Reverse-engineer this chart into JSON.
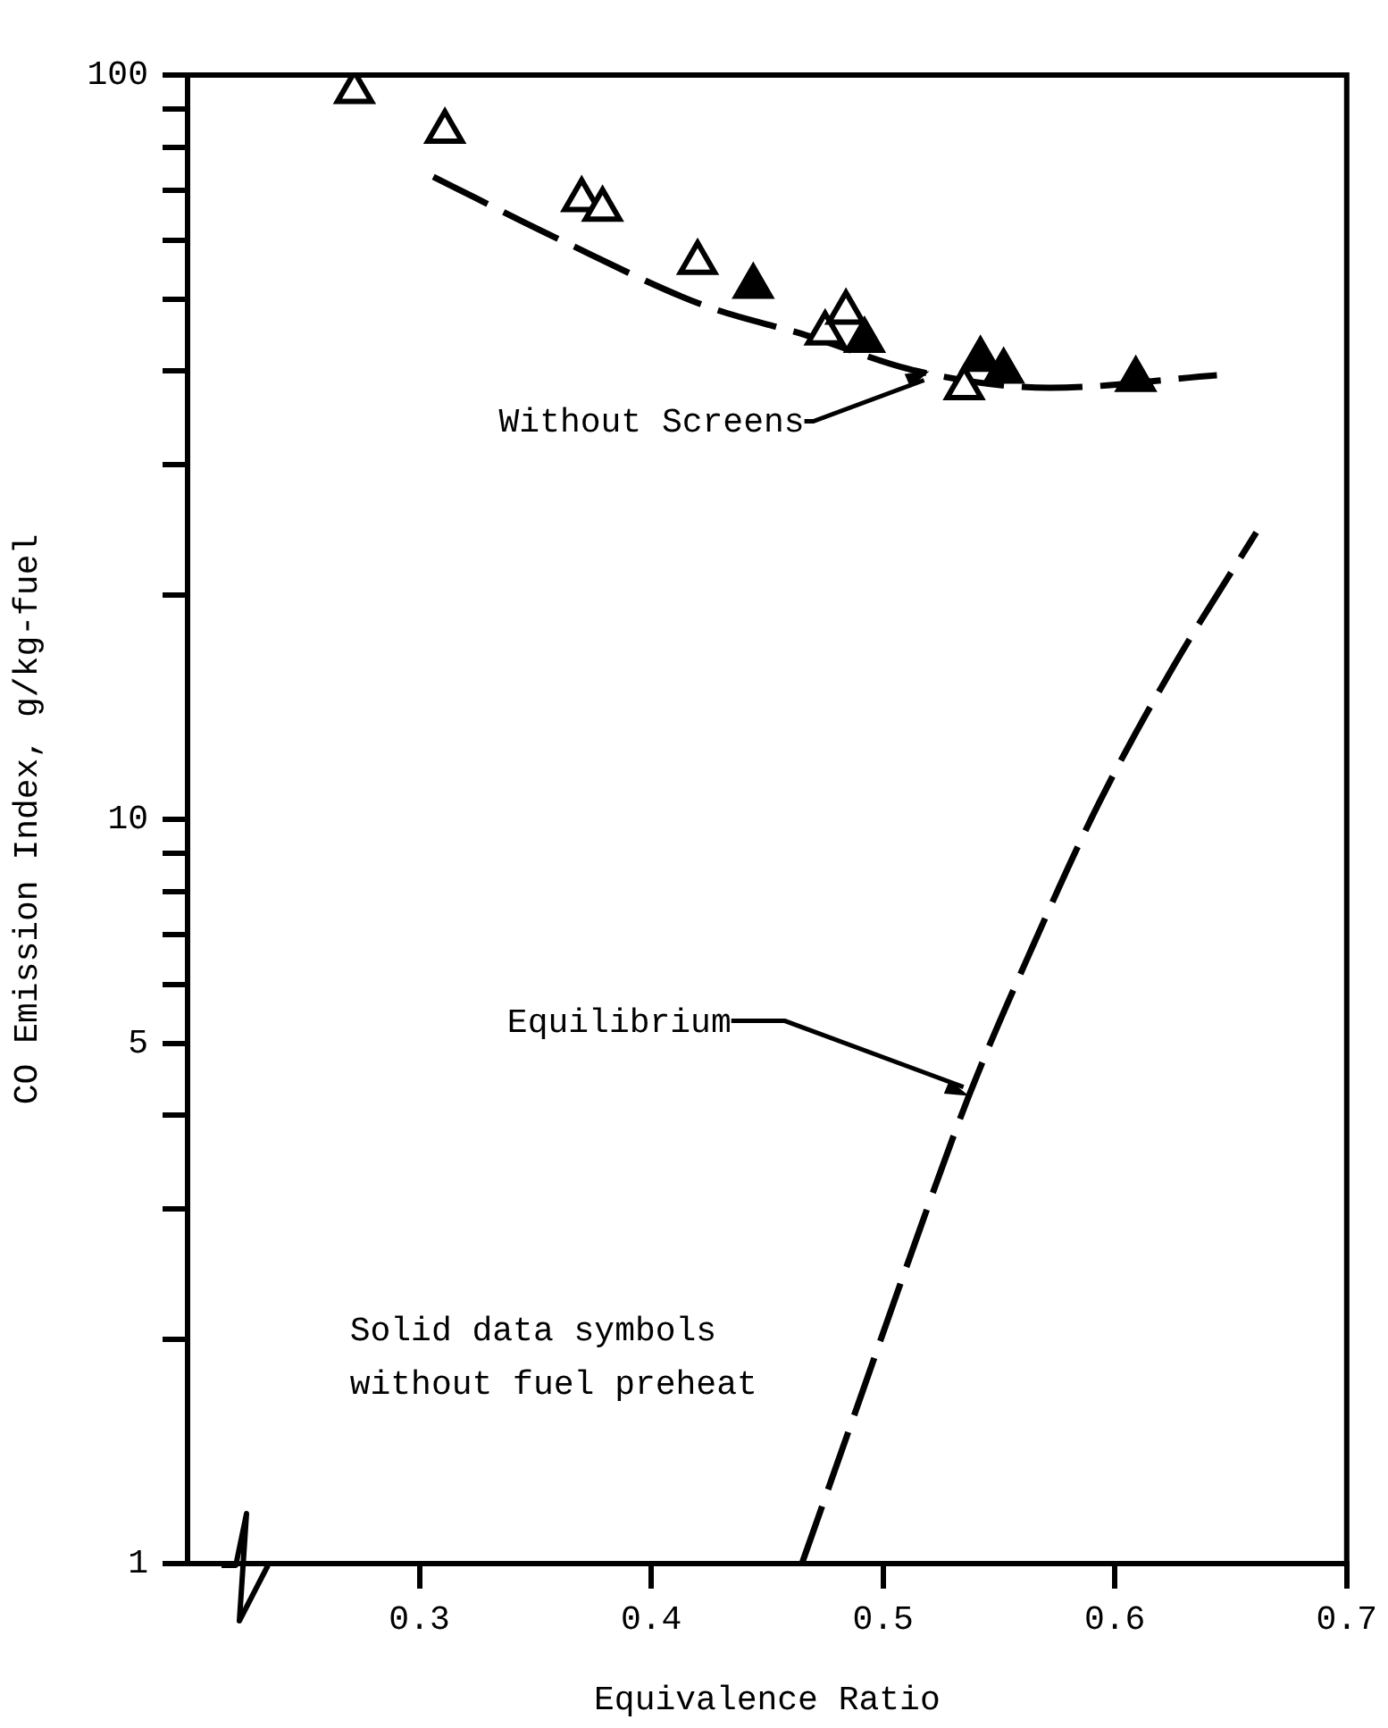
{
  "chart_data": {
    "type": "scatter",
    "xlabel": "Equivalence Ratio",
    "ylabel": "CO Emission Index, g/kg-fuel",
    "log": "y",
    "xlim": [
      0.2,
      0.7
    ],
    "xticks": [
      0.3,
      0.4,
      0.5,
      0.6,
      0.7
    ],
    "ylim": [
      1,
      100
    ],
    "yticks": [
      1,
      {
        "value": 2,
        "label": null
      },
      {
        "value": 3,
        "label": null
      },
      {
        "value": 4,
        "label": null
      },
      5,
      {
        "value": 6,
        "label": null
      },
      {
        "value": 7,
        "label": null
      },
      {
        "value": 8,
        "label": null
      },
      {
        "value": 9,
        "label": null
      },
      10,
      {
        "value": 20,
        "label": null
      },
      {
        "value": 30,
        "label": null
      },
      {
        "value": 40,
        "label": null
      },
      {
        "value": 50,
        "label": null
      },
      {
        "value": 60,
        "label": null
      },
      {
        "value": 70,
        "label": null
      },
      {
        "value": 80,
        "label": null
      },
      {
        "value": 90,
        "label": null
      },
      100
    ],
    "grid": false,
    "legend": false,
    "marker": "triangle",
    "series": [
      {
        "color": "#ffffff",
        "x": [
          0.272,
          0.311,
          0.37,
          0.379,
          0.42,
          0.475,
          0.484,
          0.535
        ],
        "values": [
          95,
          84,
          68,
          66,
          56,
          45,
          48,
          38
        ]
      },
      {
        "color": "#000000",
        "x": [
          0.444,
          0.492,
          0.542,
          0.552,
          0.609
        ],
        "values": [
          52,
          44,
          41.5,
          40,
          39
        ]
      },
      {
        "type": "line",
        "color": "#000000",
        "line_style": "dashed",
        "marker": "none",
        "x": [
          0.306,
          0.361,
          0.423,
          0.467,
          0.515,
          0.572,
          0.644
        ],
        "values": [
          73,
          60,
          49,
          44.7,
          40,
          38,
          39.5
        ]
      },
      {
        "type": "line",
        "color": "#000000",
        "line_style": "dashed",
        "marker": "none",
        "x": [
          0.465,
          0.489,
          0.51,
          0.537,
          0.565,
          0.593,
          0.625,
          0.661
        ],
        "values": [
          1,
          1.63,
          2.5,
          4.25,
          6.8,
          10.5,
          16,
          24.3
        ]
      }
    ],
    "annotations": [
      {
        "text": "Without Screens",
        "x": 0.52,
        "y": 40
      },
      {
        "text": "Equilibrium",
        "x": 0.537,
        "y": 4.25
      },
      "Solid data symbols without fuel preheat"
    ]
  }
}
